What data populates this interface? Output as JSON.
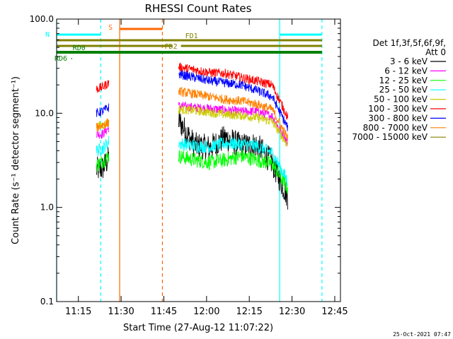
{
  "chart_data": {
    "type": "line",
    "title": "RHESSI Count Rates",
    "xlabel": "Start Time (27-Aug-12 11:07:22)",
    "ylabel": "Count Rate (s⁻¹ detector segment⁻¹)",
    "y_scale": "log",
    "ylim": [
      0.1,
      100.0
    ],
    "y_ticks": [
      "100.0",
      "10.0",
      "1.0",
      "0.1"
    ],
    "xlim": [
      "11:07:22",
      "12:47:00"
    ],
    "x_ticks": [
      "11:15",
      "11:30",
      "11:45",
      "12:00",
      "12:15",
      "12:30",
      "12:45"
    ],
    "grid": false,
    "legend_position": "right",
    "legend": {
      "header": [
        "Det 1f,3f,5f,6f,9f,",
        "Att 0"
      ],
      "entries": [
        {
          "label": "3 - 6 keV",
          "color": "#000000"
        },
        {
          "label": "6 - 12 keV",
          "color": "#ff00ff"
        },
        {
          "label": "12 - 25 keV",
          "color": "#00ff00"
        },
        {
          "label": "25 - 50 keV",
          "color": "#00ffff"
        },
        {
          "label": "50 - 100 keV",
          "color": "#cccc00"
        },
        {
          "label": "100 - 300 keV",
          "color": "#ff0000"
        },
        {
          "label": "300 - 800 keV",
          "color": "#0000ff"
        },
        {
          "label": "800 - 7000 keV",
          "color": "#ff8000"
        },
        {
          "label": "7000 - 15000 keV",
          "color": "#808000"
        }
      ]
    },
    "segments": [
      {
        "start": "11:21:20",
        "end": "11:25:40"
      },
      {
        "start": "11:50:10",
        "end": "12:28:30"
      }
    ],
    "series": [
      {
        "name": "3 - 6 keV",
        "color": "#000000",
        "values": [
          2.5,
          2.6,
          3.3,
          8.5,
          4.6,
          4.3,
          5.5,
          4.5,
          4.6,
          3.0,
          1.3
        ]
      },
      {
        "name": "6 - 12 keV",
        "color": "#ff00ff",
        "values": [
          6.0,
          6.0,
          7.0,
          12.0,
          11.5,
          11.2,
          10.8,
          10.4,
          10.5,
          9.3,
          4.8
        ]
      },
      {
        "name": "12 - 25 keV",
        "color": "#00ff00",
        "values": [
          2.8,
          3.1,
          3.5,
          3.5,
          3.2,
          3.0,
          3.2,
          3.5,
          3.2,
          2.9,
          1.6
        ]
      },
      {
        "name": "25 - 50 keV",
        "color": "#00ffff",
        "values": [
          4.0,
          4.2,
          5.0,
          4.8,
          4.5,
          4.4,
          4.8,
          4.7,
          4.5,
          3.8,
          1.9
        ]
      },
      {
        "name": "50 - 100 keV",
        "color": "#cccc00",
        "values": [
          7.2,
          7.5,
          8.0,
          11.0,
          10.7,
          10.2,
          9.7,
          9.5,
          9.0,
          8.2,
          4.6
        ]
      },
      {
        "name": "100 - 300 keV",
        "color": "#ff0000",
        "values": [
          18.0,
          19.0,
          21.0,
          31.0,
          29.0,
          27.0,
          26.5,
          24.0,
          22.0,
          20.0,
          9.0
        ]
      },
      {
        "name": "300 - 800 keV",
        "color": "#0000ff",
        "values": [
          10.0,
          10.5,
          11.5,
          26.0,
          24.0,
          22.0,
          21.0,
          20.0,
          17.5,
          15.0,
          7.0
        ]
      },
      {
        "name": "800 - 7000 keV",
        "color": "#ff8000",
        "values": [
          7.0,
          7.5,
          8.0,
          17.0,
          16.0,
          15.0,
          14.0,
          13.5,
          12.5,
          11.0,
          5.4
        ]
      },
      {
        "name": "7000 - 15000 keV",
        "color": "#808000",
        "values": []
      }
    ],
    "flags": [
      {
        "label": "S",
        "color": "#ff6600",
        "start": "11:29:30",
        "end": "11:44:30"
      },
      {
        "label": "N",
        "color": "#00ffff",
        "start": "11:07:22",
        "end": "11:22:50"
      },
      {
        "label": "N",
        "color": "#00ffff",
        "start": "12:25:40",
        "end": "12:40:30"
      },
      {
        "label": "FD1",
        "color": "#808000",
        "start": "11:07:22",
        "end": "11:51:00"
      },
      {
        "label": "FD1",
        "color": "#808000",
        "start": "11:51:00",
        "end": "12:40:30"
      },
      {
        "label": "FD2",
        "color": "#808000",
        "start": "11:07:22",
        "end": "11:48:00"
      },
      {
        "label": "FD2",
        "color": "#808000",
        "start": "11:51:00",
        "end": "12:40:30"
      },
      {
        "label": "RD0",
        "color": "#008000",
        "start": "11:07:22",
        "end": "12:40:30"
      },
      {
        "label": "RD6",
        "color": "#008000",
        "start": "11:12:30",
        "end": "11:12:40"
      }
    ],
    "vertical_markers": [
      {
        "time": "11:07:22",
        "color": "#00ffff",
        "style": "solid"
      },
      {
        "time": "11:22:50",
        "color": "#00ffff",
        "style": "dashed"
      },
      {
        "time": "11:29:30",
        "color": "#ff6600",
        "style": "solid"
      },
      {
        "time": "11:44:30",
        "color": "#ff6600",
        "style": "dashed"
      },
      {
        "time": "12:25:40",
        "color": "#00ffff",
        "style": "solid"
      },
      {
        "time": "12:40:30",
        "color": "#00ffff",
        "style": "dashed"
      }
    ],
    "footer_date": "25-Oct-2021 07:47"
  }
}
